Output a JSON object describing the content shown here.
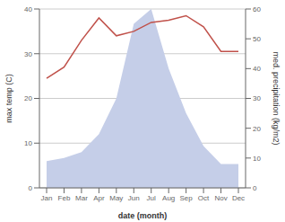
{
  "chart_data": {
    "type": "line",
    "categories": [
      "Jan",
      "Feb",
      "Mar",
      "Apr",
      "May",
      "Jun",
      "Jul",
      "Aug",
      "Sep",
      "Oct",
      "Nov",
      "Dec"
    ],
    "series": [
      {
        "type": "area",
        "axis": "y2",
        "color": "#c5cee8",
        "values": [
          9,
          10,
          12,
          18,
          30,
          55,
          60,
          40,
          25,
          14,
          8,
          8
        ]
      },
      {
        "type": "line",
        "color": "#c0514a",
        "values": [
          24.5,
          27.0,
          33.0,
          38.0,
          34.0,
          35.0,
          37.0,
          37.5,
          38.5,
          36.0,
          30.5,
          30.5
        ]
      }
    ],
    "xlabel": "date (month)",
    "ylabel": "max temp (C)",
    "y2label": "med. precipitation (kg/m2)",
    "ylim": [
      0,
      40
    ],
    "yticks": [
      0,
      10,
      20,
      30,
      40
    ],
    "y2lim": [
      0,
      60
    ],
    "y2ticks": [
      0,
      10,
      20,
      30,
      40,
      50,
      60
    ],
    "grid": true
  }
}
